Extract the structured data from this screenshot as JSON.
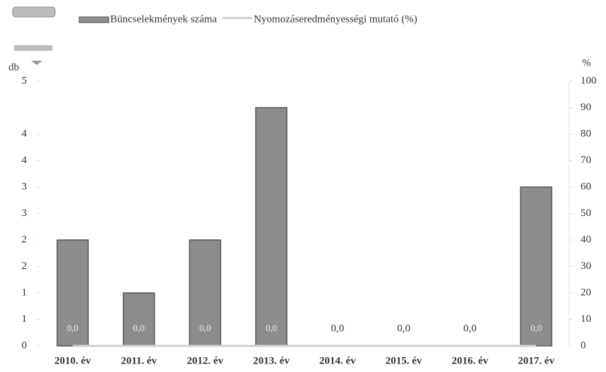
{
  "chart_data": {
    "type": "bar",
    "categories": [
      "2010. év",
      "2011. év",
      "2012. év",
      "2013. év",
      "2014. év",
      "2015. év",
      "2016. év",
      "2017. év"
    ],
    "series": [
      {
        "name": "Büncselekmények száma",
        "color": "#8c8c8c",
        "values": [
          2,
          1,
          2,
          4.5,
          0,
          0,
          0,
          3
        ]
      },
      {
        "name": "Nyomozáseredményességi mutató (%)",
        "color": "#d0d0d0",
        "axis": "y2",
        "values": [
          0,
          0,
          0,
          0,
          0,
          0,
          0,
          0
        ],
        "value_labels": [
          "0,0",
          "0,0",
          "0,0",
          "0,0",
          "0,0",
          "0,0",
          "0,0",
          "0,0"
        ]
      }
    ],
    "ylabel": "db",
    "y2label": "%",
    "ylim": [
      0,
      5
    ],
    "yticks": [
      0,
      {
        "value": 0.5,
        "label": "1"
      },
      1,
      {
        "value": 1.5,
        "label": "2"
      },
      2,
      {
        "value": 2.5,
        "label": "3"
      },
      3,
      {
        "value": 3.5,
        "label": "4"
      },
      4,
      5
    ],
    "y2lim": [
      0,
      100
    ],
    "y2ticks": [
      0,
      10,
      20,
      30,
      40,
      50,
      60,
      70,
      80,
      90,
      100
    ],
    "legend": "top"
  }
}
